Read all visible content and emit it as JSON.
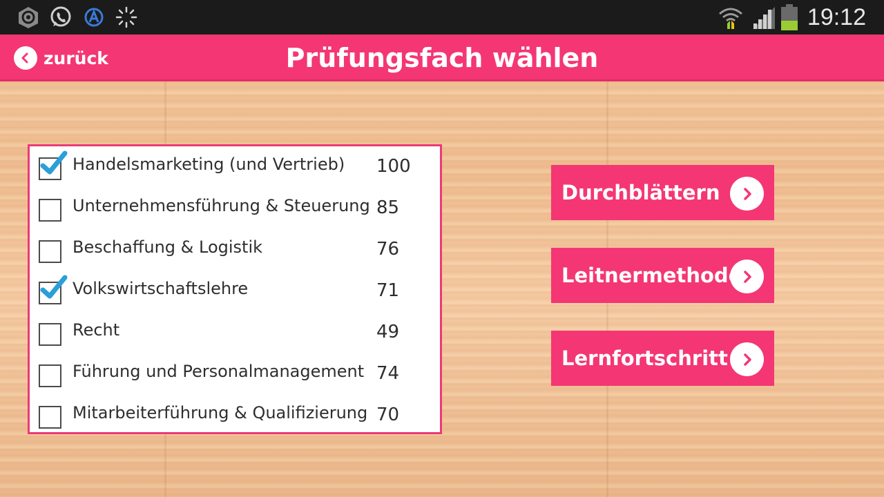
{
  "status_bar": {
    "time": "19:12",
    "icons": [
      "android-notification-icon",
      "whatsapp-icon",
      "app-icon",
      "loading-spinner-icon",
      "wifi-icon",
      "signal-icon",
      "battery-icon"
    ]
  },
  "header": {
    "back_label": "zurück",
    "title": "Prüfungsfach wählen"
  },
  "subjects": [
    {
      "label": "Handelsmarketing (und Vertrieb)",
      "count": "100",
      "checked": true
    },
    {
      "label": "Unternehmensführung & Steuerung",
      "count": "85",
      "checked": false
    },
    {
      "label": "Beschaffung & Logistik",
      "count": "76",
      "checked": false
    },
    {
      "label": "Volkswirtschaftslehre",
      "count": "71",
      "checked": true
    },
    {
      "label": "Recht",
      "count": "49",
      "checked": false
    },
    {
      "label": "Führung und Personalmanagement",
      "count": "74",
      "checked": false
    },
    {
      "label": "Mitarbeiterführung & Qualifizierung",
      "count": "70",
      "checked": false
    }
  ],
  "actions": [
    {
      "label": "Durchblättern"
    },
    {
      "label": "Leitnermethode"
    },
    {
      "label": "Lernfortschritt"
    }
  ],
  "colors": {
    "accent": "#f43675",
    "checkmark": "#2a9fd8",
    "statusbar": "#1b1b1b"
  }
}
